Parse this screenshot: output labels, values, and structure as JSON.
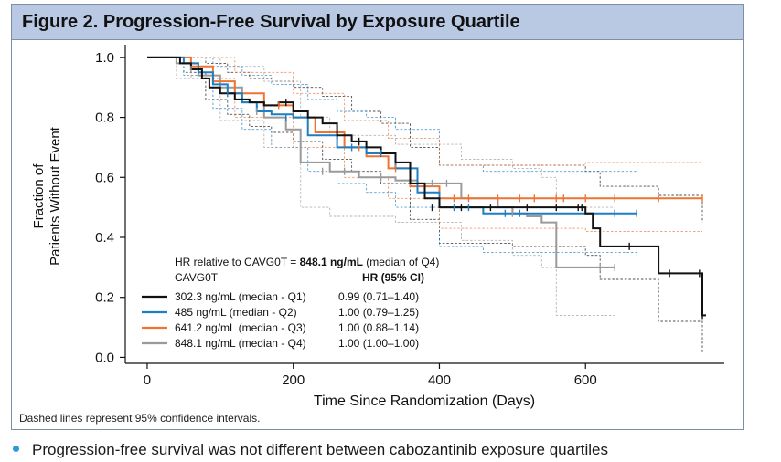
{
  "figure": {
    "title": "Figure 2. Progression-Free Survival by Exposure Quartile",
    "footnote": "Dashed lines represent 95% confidence intervals."
  },
  "bullet": {
    "text": "Progression-free survival was not different between cabozantinib exposure quartiles",
    "color": "#2b9ad8"
  },
  "colors": {
    "header_bg": "#b9c9e4",
    "q1": "#111111",
    "q2": "#1f7ec2",
    "q3": "#ee7434",
    "q4": "#9a9a9a"
  },
  "chart_data": {
    "type": "line",
    "subtype": "kaplan-meier step curve with dashed 95% confidence bands",
    "xlabel": "Time Since Randomization (Days)",
    "ylabel_line1": "Fraction of",
    "ylabel_line2": "Patients Without Event",
    "xlim": [
      -30,
      790
    ],
    "ylim": [
      -0.02,
      1.03
    ],
    "xticks": [
      0,
      200,
      400,
      600
    ],
    "xtick_labels": [
      "0",
      "200",
      "400",
      "600"
    ],
    "yticks": [
      0.0,
      0.2,
      0.4,
      0.6,
      0.8,
      1.0
    ],
    "ytick_labels": [
      "0.0",
      "0.2",
      "0.4",
      "0.6",
      "0.8",
      "1.0"
    ],
    "legend": {
      "header_prefix": "HR relative to CAVG0T = ",
      "header_bold": "848.1 ng/mL",
      "header_suffix": " (median of Q4)",
      "col1_header": "CAVG0T",
      "col2_header": "HR (95% CI)",
      "placement": "lower-left",
      "rows": [
        {
          "label": "302.3 ng/mL (median - Q1)",
          "hr": "0.99 (0.71–1.40)"
        },
        {
          "label": "485 ng/mL (median - Q2)",
          "hr": "1.00 (0.79–1.25)"
        },
        {
          "label": "641.2 ng/mL (median - Q3)",
          "hr": "1.00 (0.88–1.14)"
        },
        {
          "label": "848.1 ng/mL (median - Q4)",
          "hr": "1.00 (1.00–1.00)"
        }
      ]
    },
    "series": [
      {
        "name": "302.3 ng/mL (median - Q1)",
        "color": "#111111",
        "steps": [
          [
            0,
            1.0
          ],
          [
            45,
            0.98
          ],
          [
            60,
            0.96
          ],
          [
            75,
            0.93
          ],
          [
            85,
            0.9
          ],
          [
            100,
            0.88
          ],
          [
            120,
            0.86
          ],
          [
            140,
            0.85
          ],
          [
            160,
            0.84
          ],
          [
            180,
            0.85
          ],
          [
            200,
            0.82
          ],
          [
            220,
            0.8
          ],
          [
            240,
            0.78
          ],
          [
            260,
            0.74
          ],
          [
            280,
            0.72
          ],
          [
            300,
            0.7
          ],
          [
            320,
            0.68
          ],
          [
            340,
            0.65
          ],
          [
            360,
            0.58
          ],
          [
            380,
            0.53
          ],
          [
            400,
            0.5
          ],
          [
            600,
            0.48
          ],
          [
            610,
            0.43
          ],
          [
            620,
            0.37
          ],
          [
            700,
            0.28
          ],
          [
            760,
            0.14
          ]
        ],
        "end": 765,
        "censors": [
          [
            190,
            0.85
          ],
          [
            260,
            0.74
          ],
          [
            290,
            0.72
          ],
          [
            390,
            0.5
          ],
          [
            430,
            0.5
          ],
          [
            470,
            0.5
          ],
          [
            520,
            0.5
          ],
          [
            560,
            0.5
          ],
          [
            590,
            0.5
          ],
          [
            595,
            0.5
          ],
          [
            660,
            0.37
          ],
          [
            715,
            0.28
          ],
          [
            756,
            0.28
          ],
          [
            760,
            0.14
          ]
        ],
        "ci_upper": [
          [
            0,
            1.0
          ],
          [
            50,
            1.0
          ],
          [
            80,
            0.98
          ],
          [
            110,
            0.95
          ],
          [
            140,
            0.93
          ],
          [
            170,
            0.92
          ],
          [
            200,
            0.9
          ],
          [
            240,
            0.87
          ],
          [
            280,
            0.82
          ],
          [
            320,
            0.78
          ],
          [
            360,
            0.7
          ],
          [
            400,
            0.64
          ],
          [
            500,
            0.64
          ],
          [
            600,
            0.62
          ],
          [
            620,
            0.57
          ],
          [
            700,
            0.54
          ],
          [
            760,
            0.45
          ]
        ],
        "ci_lower": [
          [
            0,
            1.0
          ],
          [
            50,
            0.95
          ],
          [
            80,
            0.86
          ],
          [
            110,
            0.81
          ],
          [
            140,
            0.77
          ],
          [
            170,
            0.75
          ],
          [
            200,
            0.72
          ],
          [
            240,
            0.66
          ],
          [
            280,
            0.62
          ],
          [
            320,
            0.58
          ],
          [
            360,
            0.46
          ],
          [
            400,
            0.38
          ],
          [
            500,
            0.37
          ],
          [
            600,
            0.34
          ],
          [
            620,
            0.26
          ],
          [
            700,
            0.12
          ],
          [
            760,
            0.02
          ]
        ]
      },
      {
        "name": "485 ng/mL (median - Q2)",
        "color": "#1f7ec2",
        "steps": [
          [
            0,
            1.0
          ],
          [
            50,
            0.98
          ],
          [
            70,
            0.95
          ],
          [
            90,
            0.91
          ],
          [
            110,
            0.88
          ],
          [
            130,
            0.85
          ],
          [
            150,
            0.82
          ],
          [
            170,
            0.81
          ],
          [
            200,
            0.8
          ],
          [
            220,
            0.74
          ],
          [
            260,
            0.7
          ],
          [
            300,
            0.68
          ],
          [
            340,
            0.63
          ],
          [
            370,
            0.55
          ],
          [
            400,
            0.5
          ],
          [
            460,
            0.48
          ]
        ],
        "end": 670,
        "censors": [
          [
            110,
            0.88
          ],
          [
            190,
            0.8
          ],
          [
            280,
            0.7
          ],
          [
            320,
            0.68
          ],
          [
            420,
            0.5
          ],
          [
            440,
            0.5
          ],
          [
            490,
            0.48
          ],
          [
            510,
            0.48
          ],
          [
            640,
            0.48
          ],
          [
            670,
            0.48
          ]
        ],
        "ci_upper": [
          [
            0,
            1.0
          ],
          [
            50,
            1.0
          ],
          [
            90,
            0.97
          ],
          [
            130,
            0.94
          ],
          [
            170,
            0.91
          ],
          [
            220,
            0.86
          ],
          [
            260,
            0.82
          ],
          [
            300,
            0.8
          ],
          [
            340,
            0.76
          ],
          [
            400,
            0.64
          ],
          [
            460,
            0.62
          ],
          [
            670,
            0.62
          ]
        ],
        "ci_lower": [
          [
            0,
            1.0
          ],
          [
            50,
            0.94
          ],
          [
            90,
            0.83
          ],
          [
            130,
            0.76
          ],
          [
            170,
            0.7
          ],
          [
            220,
            0.62
          ],
          [
            260,
            0.58
          ],
          [
            300,
            0.55
          ],
          [
            340,
            0.5
          ],
          [
            400,
            0.37
          ],
          [
            460,
            0.35
          ],
          [
            670,
            0.34
          ]
        ]
      },
      {
        "name": "641.2 ng/mL (median - Q3)",
        "color": "#ee7434",
        "steps": [
          [
            0,
            1.0
          ],
          [
            60,
            0.97
          ],
          [
            90,
            0.92
          ],
          [
            120,
            0.88
          ],
          [
            160,
            0.84
          ],
          [
            200,
            0.8
          ],
          [
            230,
            0.75
          ],
          [
            270,
            0.7
          ],
          [
            300,
            0.67
          ],
          [
            330,
            0.63
          ],
          [
            360,
            0.57
          ],
          [
            400,
            0.53
          ]
        ],
        "end": 760,
        "censors": [
          [
            180,
            0.84
          ],
          [
            290,
            0.7
          ],
          [
            340,
            0.63
          ],
          [
            420,
            0.53
          ],
          [
            440,
            0.53
          ],
          [
            480,
            0.53
          ],
          [
            510,
            0.53
          ],
          [
            530,
            0.53
          ],
          [
            560,
            0.53
          ],
          [
            570,
            0.53
          ],
          [
            600,
            0.53
          ],
          [
            640,
            0.53
          ],
          [
            700,
            0.53
          ],
          [
            760,
            0.53
          ]
        ],
        "ci_upper": [
          [
            0,
            1.0
          ],
          [
            60,
            1.0
          ],
          [
            120,
            0.95
          ],
          [
            200,
            0.88
          ],
          [
            270,
            0.79
          ],
          [
            330,
            0.73
          ],
          [
            400,
            0.64
          ],
          [
            500,
            0.64
          ],
          [
            600,
            0.65
          ],
          [
            760,
            0.65
          ]
        ],
        "ci_lower": [
          [
            0,
            1.0
          ],
          [
            60,
            0.93
          ],
          [
            120,
            0.8
          ],
          [
            200,
            0.7
          ],
          [
            270,
            0.6
          ],
          [
            330,
            0.53
          ],
          [
            400,
            0.43
          ],
          [
            500,
            0.43
          ],
          [
            600,
            0.42
          ],
          [
            760,
            0.42
          ]
        ]
      },
      {
        "name": "848.1 ng/mL (median - Q4)",
        "color": "#9a9a9a",
        "steps": [
          [
            0,
            1.0
          ],
          [
            40,
            0.98
          ],
          [
            70,
            0.94
          ],
          [
            100,
            0.9
          ],
          [
            130,
            0.85
          ],
          [
            160,
            0.8
          ],
          [
            190,
            0.76
          ],
          [
            210,
            0.65
          ],
          [
            250,
            0.62
          ],
          [
            290,
            0.6
          ],
          [
            340,
            0.59
          ],
          [
            370,
            0.58
          ],
          [
            430,
            0.53
          ],
          [
            480,
            0.5
          ],
          [
            500,
            0.48
          ],
          [
            520,
            0.47
          ],
          [
            540,
            0.45
          ],
          [
            560,
            0.3
          ]
        ],
        "end": 640,
        "censors": [
          [
            60,
            0.96
          ],
          [
            150,
            0.82
          ],
          [
            240,
            0.62
          ],
          [
            270,
            0.62
          ],
          [
            320,
            0.6
          ],
          [
            390,
            0.58
          ],
          [
            410,
            0.58
          ],
          [
            500,
            0.48
          ],
          [
            620,
            0.3
          ],
          [
            640,
            0.3
          ]
        ],
        "ci_upper": [
          [
            0,
            1.0
          ],
          [
            40,
            1.0
          ],
          [
            100,
            0.97
          ],
          [
            160,
            0.92
          ],
          [
            210,
            0.8
          ],
          [
            250,
            0.74
          ],
          [
            340,
            0.71
          ],
          [
            430,
            0.66
          ],
          [
            500,
            0.63
          ],
          [
            540,
            0.6
          ],
          [
            560,
            0.5
          ],
          [
            640,
            0.5
          ]
        ],
        "ci_lower": [
          [
            0,
            1.0
          ],
          [
            40,
            0.93
          ],
          [
            100,
            0.79
          ],
          [
            160,
            0.7
          ],
          [
            210,
            0.5
          ],
          [
            250,
            0.47
          ],
          [
            340,
            0.45
          ],
          [
            430,
            0.39
          ],
          [
            500,
            0.34
          ],
          [
            540,
            0.3
          ],
          [
            560,
            0.14
          ],
          [
            640,
            0.14
          ]
        ]
      }
    ]
  }
}
